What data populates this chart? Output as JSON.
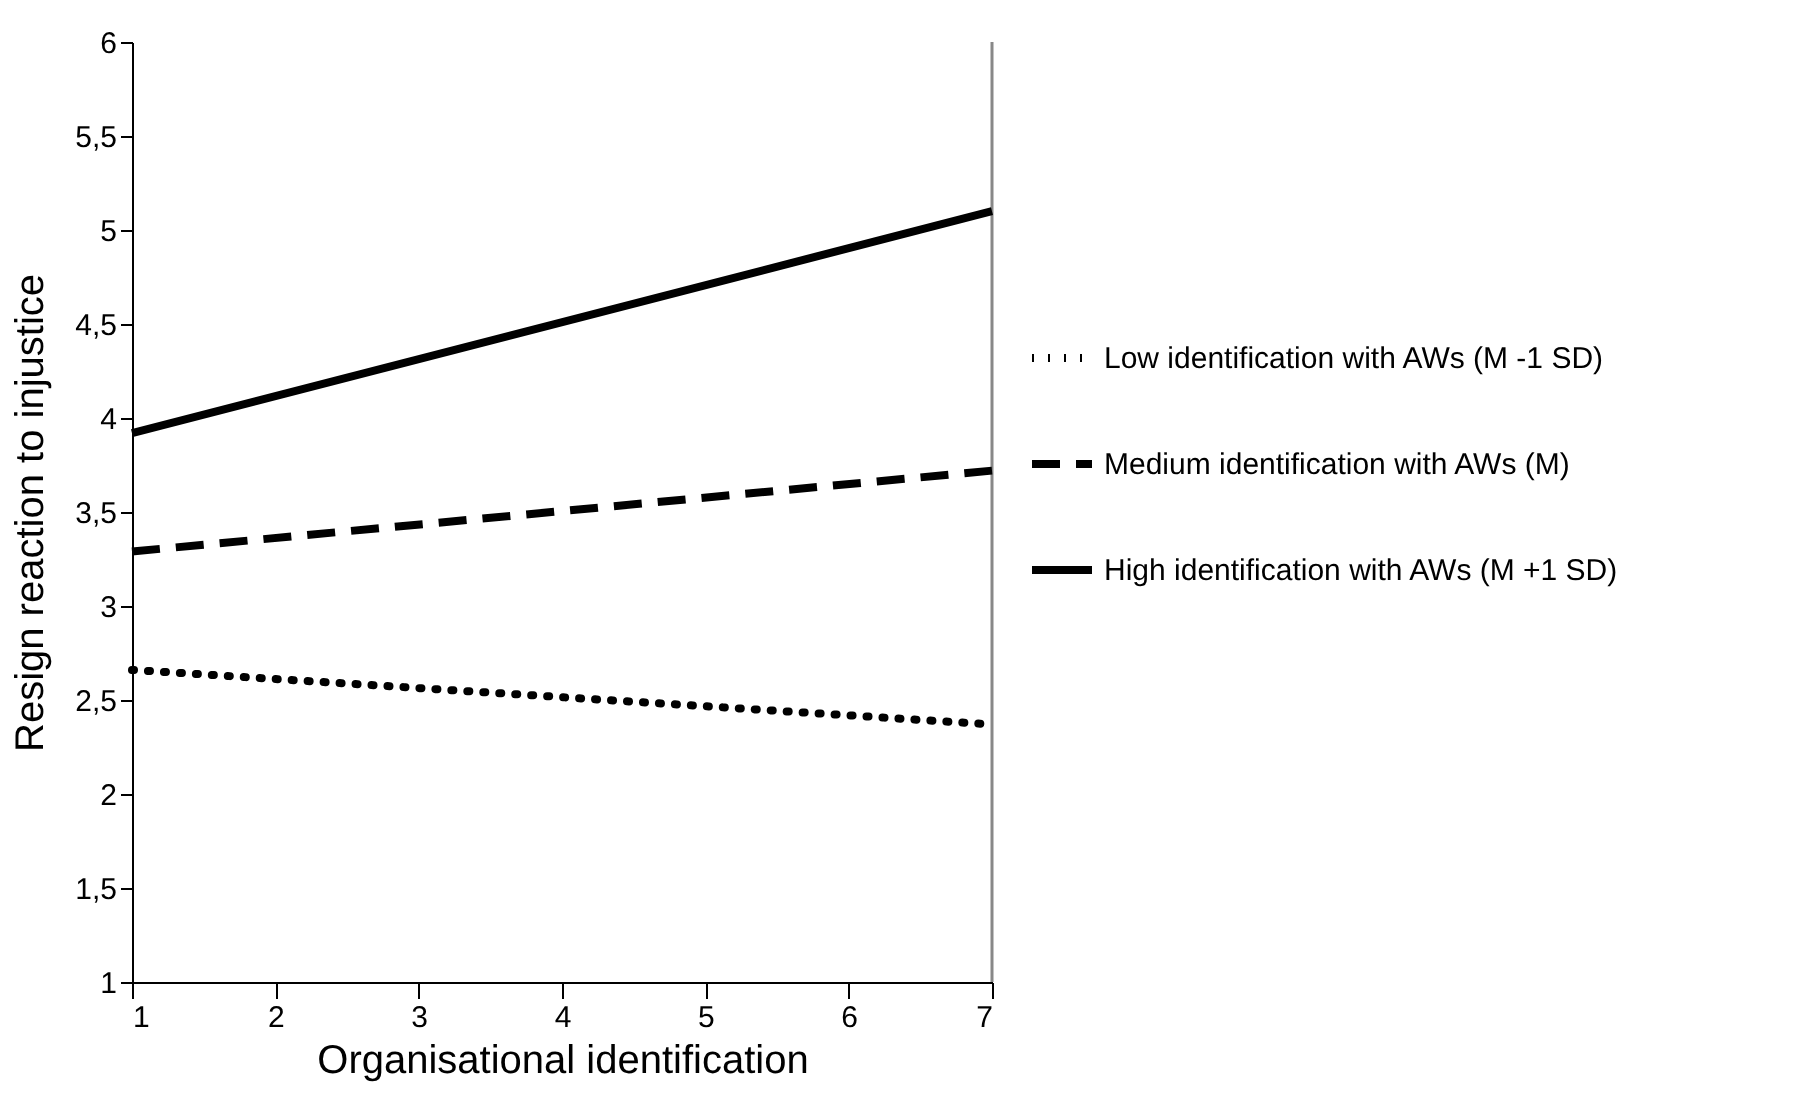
{
  "chart_data": {
    "type": "line",
    "xlabel": "Organisational identification",
    "ylabel": "Resign reaction to injustice",
    "x": [
      1,
      7
    ],
    "series": [
      {
        "name": "Low identification with AWs (M -1 SD)",
        "color": "#000000",
        "line_style": "dotted",
        "values": [
          2.66,
          2.37
        ]
      },
      {
        "name": "Medium identification with AWs (M)",
        "color": "#000000",
        "line_style": "dashed",
        "values": [
          3.29,
          3.72
        ]
      },
      {
        "name": "High identification with AWs (M +1 SD)",
        "color": "#000000",
        "line_style": "solid",
        "values": [
          3.92,
          5.1
        ]
      }
    ],
    "xlim": [
      1,
      7
    ],
    "xticks": [
      1,
      2,
      3,
      4,
      5,
      6,
      7
    ],
    "ylim": [
      1,
      6
    ],
    "yticks": [
      1,
      {
        "value": 1.5,
        "label": "1,5"
      },
      2,
      {
        "value": 2.5,
        "label": "2,5"
      },
      3,
      {
        "value": 3.5,
        "label": "3,5"
      },
      4,
      {
        "value": 4.5,
        "label": "4,5"
      },
      5,
      {
        "value": 5.5,
        "label": "5,5"
      },
      6
    ],
    "legend": "right",
    "grid": false
  }
}
